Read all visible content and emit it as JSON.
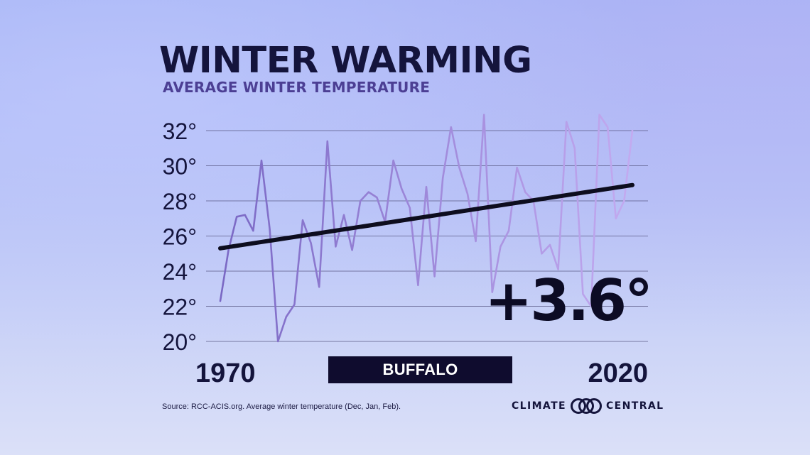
{
  "title": "WINTER WARMING",
  "subtitle": "AVERAGE WINTER TEMPERATURE",
  "location": "BUFFALO",
  "change_label": "+3.6°",
  "source": "Source: RCC-ACIS.org. Average winter temperature (Dec, Jan, Feb).",
  "brand": {
    "left": "CLIMATE",
    "right": "CENTRAL",
    "logo": "climate-central-logo-icon"
  },
  "colors": {
    "line_start": "#7a68c4",
    "line_end": "#c3aaf0",
    "trend": "#0d0d1e",
    "grid": "#5a5a86",
    "title": "#14143c",
    "subtitle": "#4c3f94",
    "location_box": "#0f0c2e"
  },
  "chart_data": {
    "type": "line",
    "x_start": 1970,
    "x_end": 2020,
    "x_tick_labels": [
      "1970",
      "2020"
    ],
    "y_tick_values": [
      20,
      22,
      24,
      26,
      28,
      30,
      32
    ],
    "y_tick_labels": [
      "20°",
      "22°",
      "24°",
      "26°",
      "28°",
      "30°",
      "32°"
    ],
    "ylim": [
      20,
      32
    ],
    "grid": true,
    "series": [
      {
        "values": [
          22.3,
          25.2,
          27.1,
          27.2,
          26.3,
          30.3,
          26.4,
          20.0,
          21.4,
          22.1,
          26.9,
          25.6,
          23.1,
          31.4,
          25.4,
          27.2,
          25.2,
          28.0,
          28.5,
          28.2,
          26.8,
          30.3,
          28.7,
          27.6,
          23.2,
          28.8,
          23.7,
          29.3,
          32.2,
          29.9,
          28.4,
          25.7,
          32.9,
          22.8,
          25.4,
          26.3,
          29.9,
          28.5,
          28.0,
          25.0,
          25.5,
          24.1,
          32.5,
          31.0,
          22.7,
          22.0,
          32.9,
          32.2,
          27.0,
          28.0,
          32.0
        ]
      }
    ],
    "trend": {
      "start": 25.3,
      "end": 28.9
    }
  }
}
